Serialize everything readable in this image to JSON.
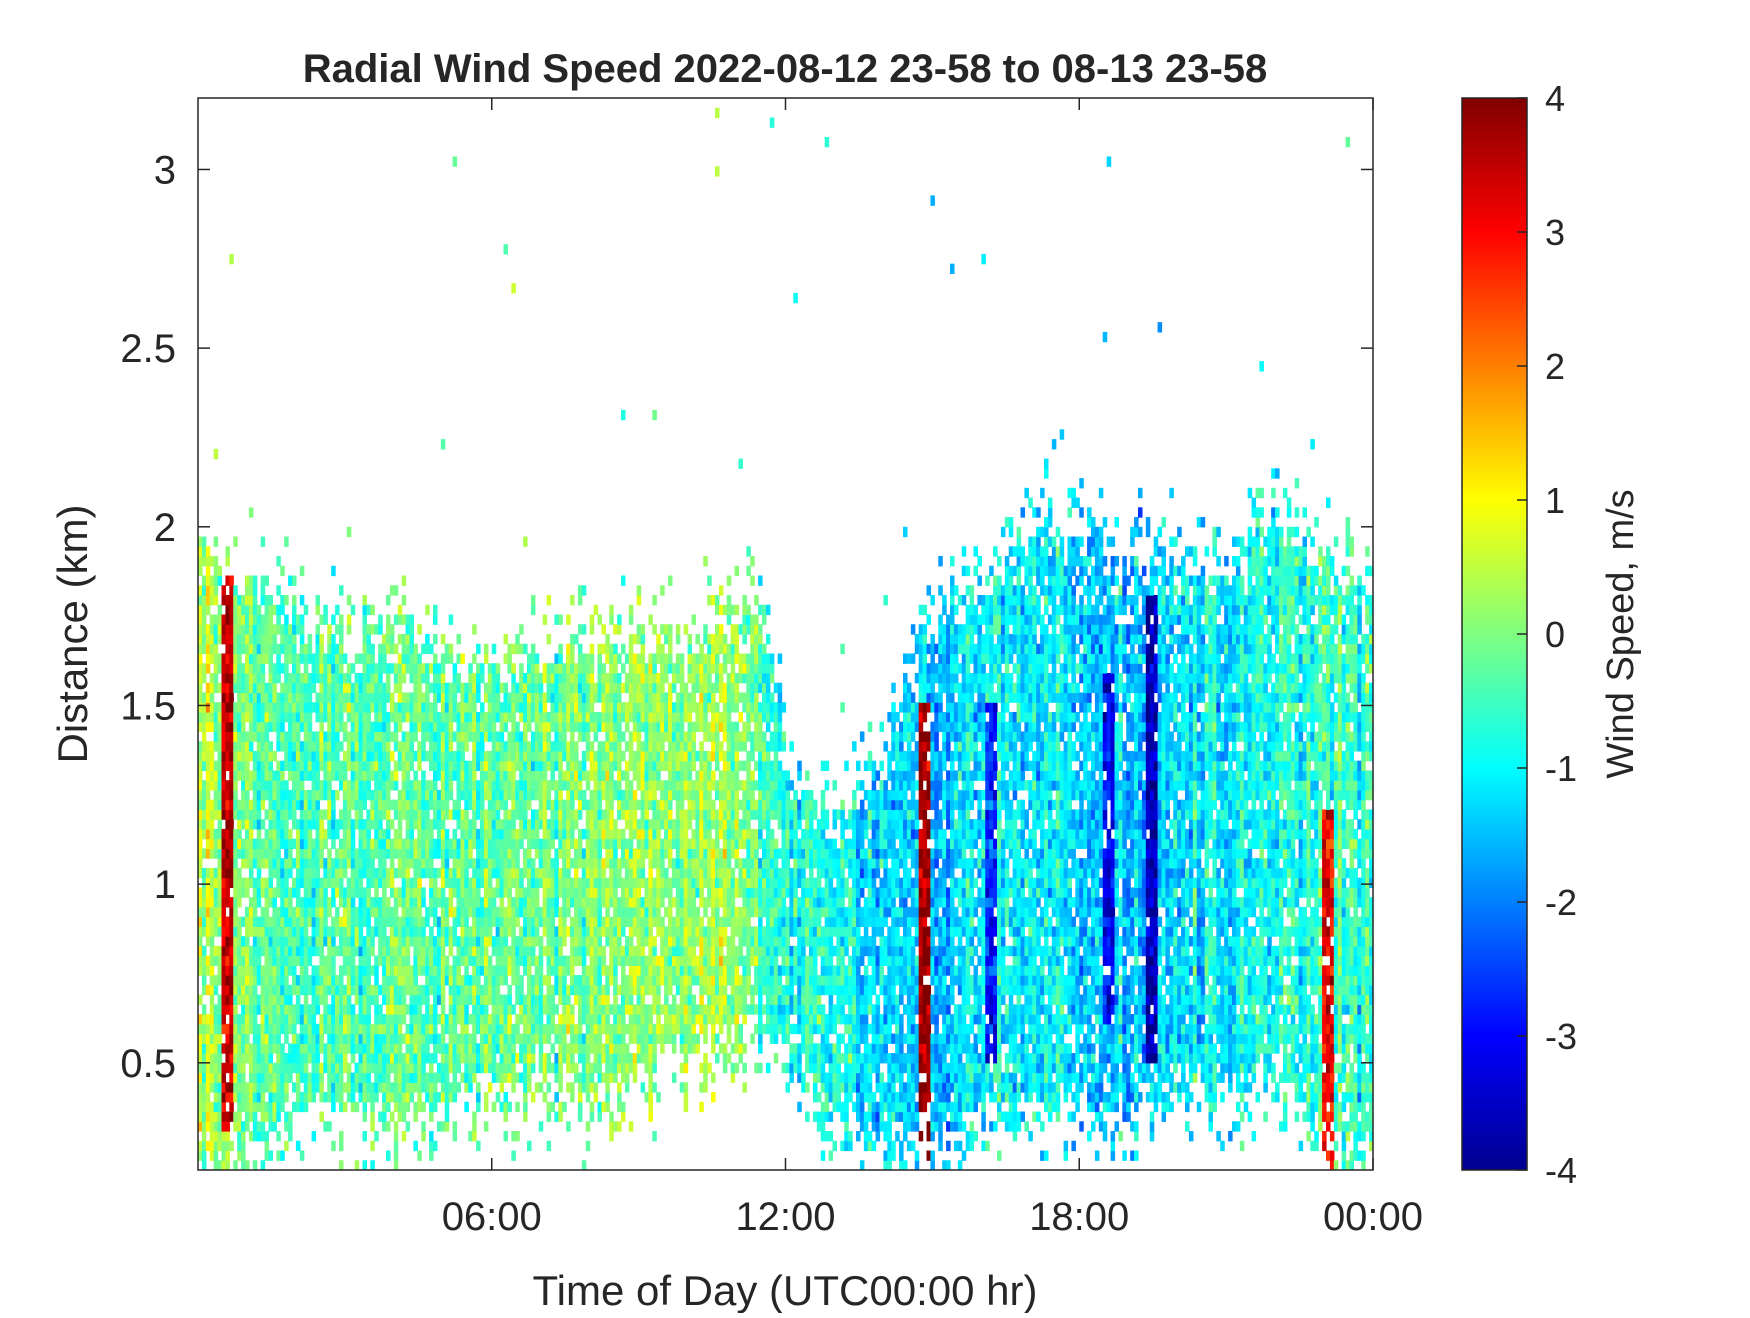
{
  "chart_data": {
    "type": "heatmap",
    "title": "Radial Wind Speed 2022-08-12 23-58 to 08-13 23-58",
    "xlabel": "Time of Day (UTC00:00 hr)",
    "ylabel": "Distance (km)",
    "colorbar_label": "Wind Speed, m/s",
    "colormap": "jet",
    "xlim": [
      0,
      24
    ],
    "ylim": [
      0.2,
      3.2
    ],
    "clim": [
      -4,
      4
    ],
    "x_ticks": [
      6,
      12,
      18,
      24
    ],
    "x_tick_labels": [
      "06:00",
      "12:00",
      "18:00",
      "00:00"
    ],
    "y_ticks": [
      0.5,
      1,
      1.5,
      2,
      2.5,
      3
    ],
    "y_tick_labels": [
      "0.5",
      "1",
      "1.5",
      "2",
      "2.5",
      "3"
    ],
    "colorbar_ticks": [
      -4,
      -3,
      -2,
      -1,
      0,
      1,
      2,
      3,
      4
    ],
    "colorbar_tick_labels": [
      "-4",
      "-3",
      "-2",
      "-1",
      "0",
      "1",
      "2",
      "3",
      "4"
    ],
    "coverage_profile": {
      "description": "Approximate top and bottom of the valid-data region vs. time",
      "time_hr": [
        0,
        1,
        2,
        3,
        4,
        5,
        6,
        7,
        8,
        9,
        10,
        11,
        11.5,
        12,
        13,
        14,
        15,
        16,
        17,
        18,
        19,
        20,
        21,
        22,
        23,
        24
      ],
      "top_km": [
        1.9,
        1.85,
        1.7,
        1.65,
        1.7,
        1.6,
        1.55,
        1.6,
        1.65,
        1.65,
        1.65,
        1.7,
        1.7,
        1.35,
        1.15,
        1.3,
        1.7,
        1.8,
        1.95,
        1.95,
        1.85,
        1.85,
        1.85,
        2.05,
        1.85,
        1.75
      ],
      "bottom_km": [
        0.2,
        0.3,
        0.4,
        0.4,
        0.35,
        0.4,
        0.45,
        0.45,
        0.45,
        0.5,
        0.55,
        0.6,
        0.65,
        0.55,
        0.35,
        0.3,
        0.3,
        0.4,
        0.4,
        0.4,
        0.4,
        0.45,
        0.45,
        0.5,
        0.3,
        0.25
      ],
      "mean_speed_m_s": [
        0.8,
        -0.3,
        -0.4,
        -0.3,
        -0.2,
        -0.3,
        -0.2,
        0.0,
        0.1,
        0.1,
        0.2,
        0.1,
        -0.5,
        -0.6,
        -0.8,
        -1.2,
        -1.5,
        -1.0,
        -0.9,
        -1.3,
        -1.5,
        -1.2,
        -1.0,
        -0.7,
        -0.5,
        -0.6
      ]
    },
    "features": [
      {
        "time_hr": 0.6,
        "range_km": [
          0.3,
          1.9
        ],
        "speed_m_s": 3.5
      },
      {
        "time_hr": 14.8,
        "range_km": [
          0.2,
          1.5
        ],
        "speed_m_s": 3.8
      },
      {
        "time_hr": 23.1,
        "range_km": [
          0.2,
          1.2
        ],
        "speed_m_s": 3.2
      },
      {
        "time_hr": 19.5,
        "range_km": [
          0.5,
          1.8
        ],
        "speed_m_s": -3.5
      },
      {
        "time_hr": 18.6,
        "range_km": [
          0.6,
          1.6
        ],
        "speed_m_s": -3.0
      },
      {
        "time_hr": 16.2,
        "range_km": [
          0.5,
          1.5
        ],
        "speed_m_s": -2.8
      }
    ]
  }
}
